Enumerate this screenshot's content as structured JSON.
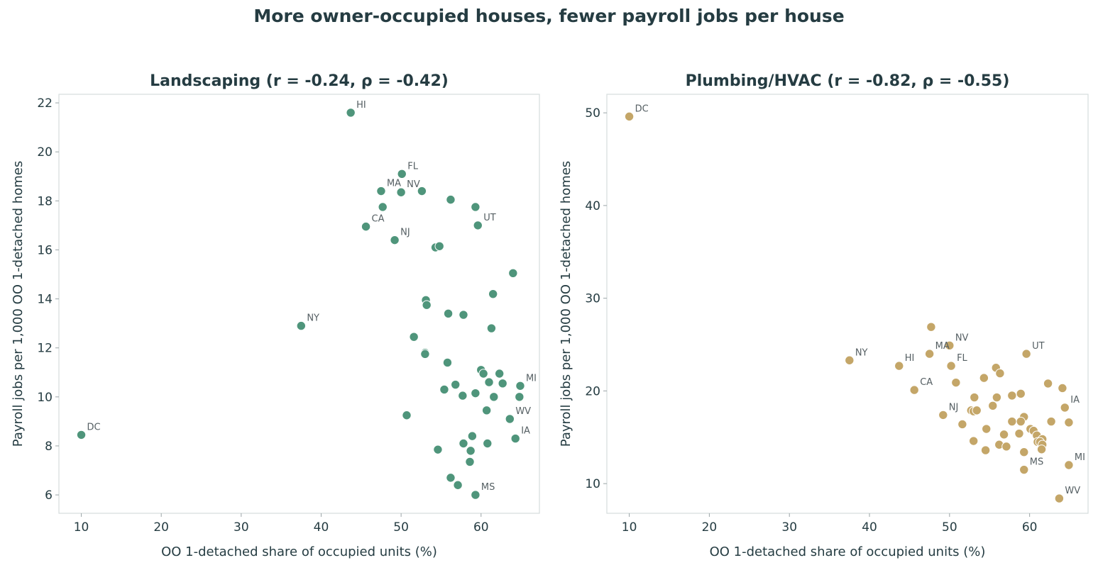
{
  "figure": {
    "title": "More owner-occupied houses, fewer payroll jobs per house",
    "text_color": "#253c42",
    "frame_color": "#d5dcdd"
  },
  "chart_data": [
    {
      "type": "scatter",
      "title": "Landscaping  (r = -0.24, ρ = -0.42)",
      "xlabel": "OO 1-detached share of occupied units (%)",
      "ylabel": "Payroll jobs per 1,000 OO 1-detached homes",
      "xlim": [
        7.2,
        67.3
      ],
      "ylim": [
        5.25,
        22.35
      ],
      "xticks": [
        10,
        20,
        30,
        40,
        50,
        60
      ],
      "yticks": [
        6,
        8,
        10,
        12,
        14,
        16,
        18,
        20,
        22
      ],
      "grid": false,
      "color": "#4f957b",
      "points": [
        {
          "x": 43.7,
          "y": 21.6,
          "label": "HI"
        },
        {
          "x": 50.1,
          "y": 19.1,
          "label": "FL"
        },
        {
          "x": 47.5,
          "y": 18.4,
          "label": "MA"
        },
        {
          "x": 50.0,
          "y": 18.35,
          "label": "NV"
        },
        {
          "x": 52.6,
          "y": 18.4,
          "label": ""
        },
        {
          "x": 56.2,
          "y": 18.05,
          "label": ""
        },
        {
          "x": 47.7,
          "y": 17.75,
          "label": ""
        },
        {
          "x": 59.3,
          "y": 17.75,
          "label": ""
        },
        {
          "x": 45.6,
          "y": 16.95,
          "label": "CA"
        },
        {
          "x": 59.6,
          "y": 17.0,
          "label": "UT"
        },
        {
          "x": 49.2,
          "y": 16.4,
          "label": "NJ"
        },
        {
          "x": 54.3,
          "y": 16.1,
          "label": ""
        },
        {
          "x": 54.8,
          "y": 16.15,
          "label": ""
        },
        {
          "x": 64.0,
          "y": 15.05,
          "label": ""
        },
        {
          "x": 61.5,
          "y": 14.2,
          "label": ""
        },
        {
          "x": 53.1,
          "y": 13.95,
          "label": ""
        },
        {
          "x": 53.2,
          "y": 13.75,
          "label": ""
        },
        {
          "x": 55.9,
          "y": 13.4,
          "label": ""
        },
        {
          "x": 57.8,
          "y": 13.35,
          "label": ""
        },
        {
          "x": 37.5,
          "y": 12.9,
          "label": "NY"
        },
        {
          "x": 61.3,
          "y": 12.8,
          "label": ""
        },
        {
          "x": 51.6,
          "y": 12.45,
          "label": ""
        },
        {
          "x": 53.0,
          "y": 11.8,
          "label": ""
        },
        {
          "x": 53.0,
          "y": 11.75,
          "label": ""
        },
        {
          "x": 55.8,
          "y": 11.4,
          "label": ""
        },
        {
          "x": 60.0,
          "y": 11.1,
          "label": ""
        },
        {
          "x": 60.3,
          "y": 10.95,
          "label": ""
        },
        {
          "x": 62.3,
          "y": 10.95,
          "label": ""
        },
        {
          "x": 61.0,
          "y": 10.6,
          "label": ""
        },
        {
          "x": 62.7,
          "y": 10.55,
          "label": ""
        },
        {
          "x": 56.8,
          "y": 10.5,
          "label": ""
        },
        {
          "x": 64.9,
          "y": 10.45,
          "label": "MI"
        },
        {
          "x": 55.4,
          "y": 10.3,
          "label": ""
        },
        {
          "x": 59.3,
          "y": 10.15,
          "label": ""
        },
        {
          "x": 57.7,
          "y": 10.05,
          "label": ""
        },
        {
          "x": 61.6,
          "y": 10.0,
          "label": ""
        },
        {
          "x": 64.8,
          "y": 10.0,
          "label": ""
        },
        {
          "x": 60.7,
          "y": 9.45,
          "label": ""
        },
        {
          "x": 50.7,
          "y": 9.25,
          "label": ""
        },
        {
          "x": 63.6,
          "y": 9.1,
          "label": "WV"
        },
        {
          "x": 10.0,
          "y": 8.45,
          "label": "DC"
        },
        {
          "x": 58.9,
          "y": 8.4,
          "label": ""
        },
        {
          "x": 64.3,
          "y": 8.3,
          "label": "IA"
        },
        {
          "x": 57.8,
          "y": 8.1,
          "label": ""
        },
        {
          "x": 60.8,
          "y": 8.1,
          "label": ""
        },
        {
          "x": 54.6,
          "y": 7.85,
          "label": ""
        },
        {
          "x": 58.7,
          "y": 7.8,
          "label": ""
        },
        {
          "x": 58.6,
          "y": 7.35,
          "label": ""
        },
        {
          "x": 56.2,
          "y": 6.7,
          "label": ""
        },
        {
          "x": 57.1,
          "y": 6.4,
          "label": ""
        },
        {
          "x": 59.3,
          "y": 6.0,
          "label": "MS"
        }
      ]
    },
    {
      "type": "scatter",
      "title": "Plumbing/HVAC  (r = -0.82, ρ = -0.55)",
      "xlabel": "OO 1-detached share of occupied units (%)",
      "ylabel": "Payroll jobs per 1,000 OO 1-detached homes",
      "xlim": [
        7.2,
        67.3
      ],
      "ylim": [
        6.8,
        52.0
      ],
      "xticks": [
        10,
        20,
        30,
        40,
        50,
        60
      ],
      "yticks": [
        10,
        20,
        30,
        40,
        50
      ],
      "grid": false,
      "color": "#c4a668",
      "points": [
        {
          "x": 10.0,
          "y": 49.6,
          "label": "DC"
        },
        {
          "x": 47.7,
          "y": 26.9,
          "label": ""
        },
        {
          "x": 50.0,
          "y": 24.9,
          "label": "NV"
        },
        {
          "x": 47.5,
          "y": 24.0,
          "label": "MA"
        },
        {
          "x": 59.6,
          "y": 24.0,
          "label": "UT"
        },
        {
          "x": 37.5,
          "y": 23.3,
          "label": "NY"
        },
        {
          "x": 43.7,
          "y": 22.7,
          "label": "HI"
        },
        {
          "x": 50.2,
          "y": 22.7,
          "label": "FL"
        },
        {
          "x": 55.8,
          "y": 22.5,
          "label": ""
        },
        {
          "x": 56.3,
          "y": 21.9,
          "label": ""
        },
        {
          "x": 54.3,
          "y": 21.4,
          "label": ""
        },
        {
          "x": 50.8,
          "y": 20.9,
          "label": ""
        },
        {
          "x": 62.3,
          "y": 20.8,
          "label": ""
        },
        {
          "x": 64.1,
          "y": 20.3,
          "label": ""
        },
        {
          "x": 45.6,
          "y": 20.1,
          "label": "CA"
        },
        {
          "x": 58.9,
          "y": 19.7,
          "label": ""
        },
        {
          "x": 57.8,
          "y": 19.5,
          "label": ""
        },
        {
          "x": 53.1,
          "y": 19.3,
          "label": ""
        },
        {
          "x": 55.9,
          "y": 19.3,
          "label": ""
        },
        {
          "x": 55.4,
          "y": 18.4,
          "label": ""
        },
        {
          "x": 64.4,
          "y": 18.2,
          "label": "IA"
        },
        {
          "x": 52.7,
          "y": 17.9,
          "label": ""
        },
        {
          "x": 53.0,
          "y": 17.8,
          "label": ""
        },
        {
          "x": 53.4,
          "y": 17.9,
          "label": ""
        },
        {
          "x": 49.2,
          "y": 17.4,
          "label": "NJ"
        },
        {
          "x": 59.3,
          "y": 17.2,
          "label": ""
        },
        {
          "x": 57.8,
          "y": 16.7,
          "label": ""
        },
        {
          "x": 57.8,
          "y": 16.7,
          "label": ""
        },
        {
          "x": 58.9,
          "y": 16.7,
          "label": ""
        },
        {
          "x": 62.7,
          "y": 16.7,
          "label": ""
        },
        {
          "x": 64.9,
          "y": 16.6,
          "label": ""
        },
        {
          "x": 51.6,
          "y": 16.4,
          "label": ""
        },
        {
          "x": 54.6,
          "y": 15.9,
          "label": ""
        },
        {
          "x": 60.1,
          "y": 15.9,
          "label": ""
        },
        {
          "x": 60.5,
          "y": 15.7,
          "label": ""
        },
        {
          "x": 56.8,
          "y": 15.3,
          "label": ""
        },
        {
          "x": 58.7,
          "y": 15.4,
          "label": ""
        },
        {
          "x": 60.9,
          "y": 15.2,
          "label": ""
        },
        {
          "x": 61.6,
          "y": 14.8,
          "label": ""
        },
        {
          "x": 61.0,
          "y": 14.5,
          "label": ""
        },
        {
          "x": 61.3,
          "y": 14.5,
          "label": ""
        },
        {
          "x": 53.0,
          "y": 14.6,
          "label": ""
        },
        {
          "x": 61.6,
          "y": 14.2,
          "label": ""
        },
        {
          "x": 56.2,
          "y": 14.2,
          "label": ""
        },
        {
          "x": 57.1,
          "y": 14.0,
          "label": ""
        },
        {
          "x": 61.5,
          "y": 13.7,
          "label": ""
        },
        {
          "x": 54.5,
          "y": 13.6,
          "label": ""
        },
        {
          "x": 59.3,
          "y": 13.4,
          "label": ""
        },
        {
          "x": 64.9,
          "y": 12.0,
          "label": "MI"
        },
        {
          "x": 59.3,
          "y": 11.5,
          "label": "MS"
        },
        {
          "x": 63.7,
          "y": 8.4,
          "label": "WV"
        }
      ]
    }
  ]
}
